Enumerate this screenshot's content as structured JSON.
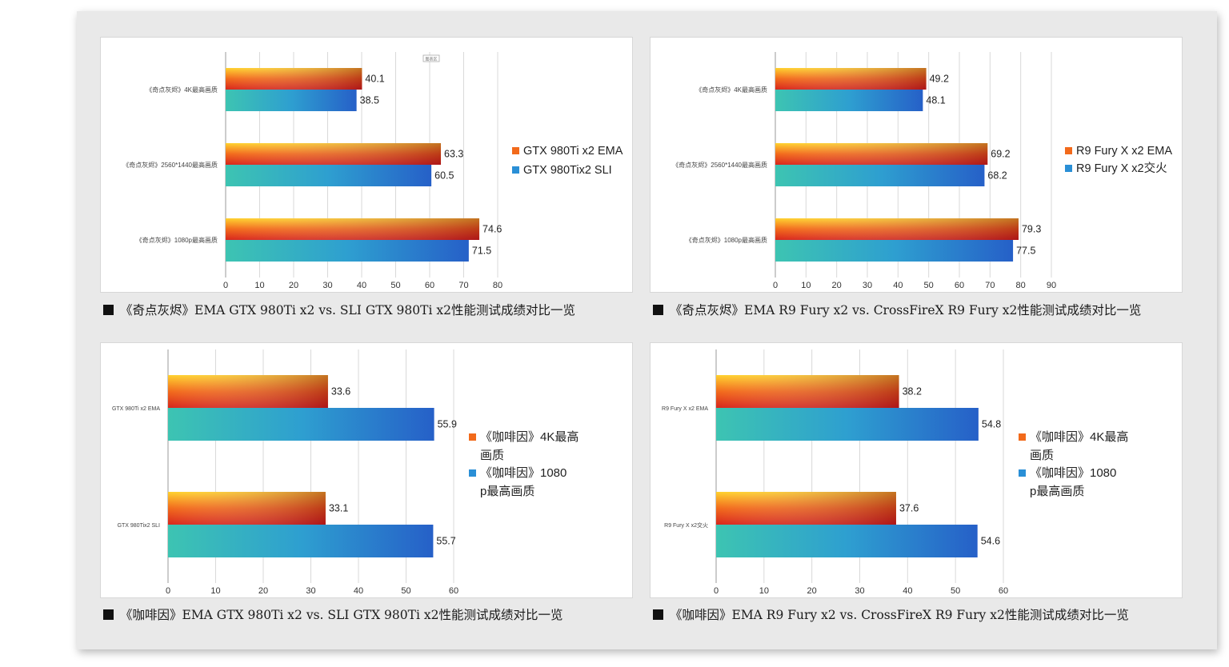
{
  "captions": [
    "《奇点灰烬》EMA GTX 980Ti x2 vs. SLI GTX 980Ti x2性能测试成绩对比一览",
    "《奇点灰烬》EMA R9 Fury x2 vs. CrossFireX R9 Fury x2性能测试成绩对比一览",
    "《咖啡因》EMA GTX 980Ti x2 vs. SLI GTX 980Ti x2性能测试成绩对比一览",
    "《咖啡因》EMA R9 Fury x2 vs. CrossFireX R9 Fury x2性能测试成绩对比一览"
  ],
  "colors": {
    "orange": "#f26a1b",
    "blue": "#2a8fd6",
    "caption_square": "#111111"
  },
  "chart_data": [
    {
      "type": "bar",
      "orientation": "horizontal",
      "categories": [
        "《奇点灰烬》4K最高画质",
        "《奇点灰烬》2560*1440最高画质",
        "《奇点灰烬》1080p最高画质"
      ],
      "series": [
        {
          "name": "GTX 980Ti x2 EMA",
          "values": [
            40.1,
            63.3,
            74.6
          ],
          "color": "orange"
        },
        {
          "name": "GTX 980Tix2 SLI",
          "values": [
            38.5,
            60.5,
            71.5
          ],
          "color": "blue"
        }
      ],
      "xlim": [
        0,
        80
      ],
      "xticks": [
        0,
        10,
        20,
        30,
        40,
        50,
        60,
        70,
        80
      ],
      "legend_position": "right",
      "stamp": "图表区"
    },
    {
      "type": "bar",
      "orientation": "horizontal",
      "categories": [
        "《奇点灰烬》4K最高画质",
        "《奇点灰烬》2560*1440最高画质",
        "《奇点灰烬》1080p最高画质"
      ],
      "series": [
        {
          "name": "R9 Fury X x2 EMA",
          "values": [
            49.2,
            69.2,
            79.3
          ],
          "color": "orange"
        },
        {
          "name": "R9 Fury X x2交火",
          "values": [
            48.1,
            68.2,
            77.5
          ],
          "color": "blue"
        }
      ],
      "xlim": [
        0,
        90
      ],
      "xticks": [
        0,
        10,
        20,
        30,
        40,
        50,
        60,
        70,
        80,
        90
      ],
      "legend_position": "right"
    },
    {
      "type": "bar",
      "orientation": "horizontal",
      "categories": [
        "GTX 980Ti x2 EMA",
        "GTX 980Tix2 SLI"
      ],
      "series": [
        {
          "name": "《咖啡因》4K最高画质",
          "values": [
            33.6,
            33.1
          ],
          "color": "orange"
        },
        {
          "name": "《咖啡因》1080p最高画质",
          "values": [
            55.9,
            55.7
          ],
          "color": "blue"
        }
      ],
      "xlim": [
        0,
        60
      ],
      "xticks": [
        0,
        10,
        20,
        30,
        40,
        50,
        60
      ],
      "legend_position": "right"
    },
    {
      "type": "bar",
      "orientation": "horizontal",
      "categories": [
        "R9 Fury X x2 EMA",
        "R9 Fury X x2交火"
      ],
      "series": [
        {
          "name": "《咖啡因》4K最高画质",
          "values": [
            38.2,
            37.6
          ],
          "color": "orange"
        },
        {
          "name": "《咖啡因》1080p最高画质",
          "values": [
            54.8,
            54.6
          ],
          "color": "blue"
        }
      ],
      "xlim": [
        0,
        60
      ],
      "xticks": [
        0,
        10,
        20,
        30,
        40,
        50,
        60
      ],
      "legend_position": "right"
    }
  ]
}
